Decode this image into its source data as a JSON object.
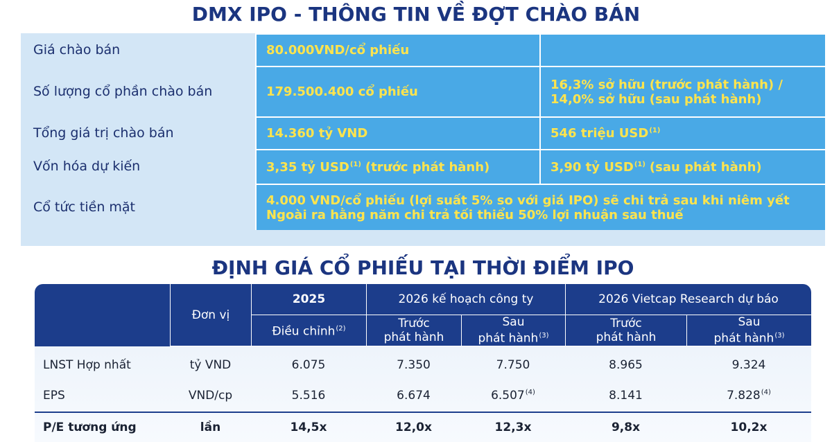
{
  "header": {
    "title": "DMX IPO - THÔNG TIN VỀ ĐỢT CHÀO BÁN"
  },
  "offer": {
    "rows": [
      {
        "label": "Giá chào bán",
        "value": {
          "text": "80.000VND/cổ phiếu"
        }
      },
      {
        "label": "Số lượng cổ phần chào bán",
        "value": {
          "text": "179.500.400 cổ phiếu"
        },
        "extra": {
          "lines": [
            "16,3% sở hữu (trước phát hành) /",
            "14,0% sở hữu (sau phát hành)"
          ]
        }
      },
      {
        "label": "Tổng giá trị chào bán",
        "value": {
          "text": "14.360 tỷ VND"
        },
        "extra": {
          "text": "546 triệu USD",
          "note": "(1)"
        }
      },
      {
        "label": "Vốn hóa dự kiến",
        "value": {
          "text": "3,35 tỷ USD",
          "note": "(1)",
          "after": "(trước phát hành)"
        },
        "extra": {
          "text": "3,90 tỷ USD",
          "note": "(1)",
          "after": "(sau phát hành)"
        }
      },
      {
        "label": "Cổ tức tiền mặt",
        "value": {
          "lines": [
            "4.000 VND/cổ phiếu (lợi suất 5% so với giá IPO) sẽ chi trả sau khi niêm yết",
            "Ngoài ra hằng năm chi trả tối thiểu 50% lợi nhuận sau thuế"
          ]
        }
      }
    ]
  },
  "valuation": {
    "title": "ĐỊNH GIÁ CỔ PHIẾU TẠI THỜI ĐIỂM IPO",
    "unit_header": "Đơn vị",
    "groups": [
      {
        "name": "2025",
        "subs": [
          {
            "lines": [
              "Điều chỉnh"
            ],
            "note": "(2)"
          }
        ]
      },
      {
        "name": "2026 kế hoạch công ty",
        "subs": [
          {
            "lines": [
              "Trước",
              "phát hành"
            ]
          },
          {
            "lines": [
              "Sau",
              "phát hành"
            ],
            "note": "(3)"
          }
        ]
      },
      {
        "name": "2026 Vietcap Research dự báo",
        "subs": [
          {
            "lines": [
              "Trước",
              "phát hành"
            ]
          },
          {
            "lines": [
              "Sau",
              "phát hành"
            ],
            "note": "(3)"
          }
        ]
      }
    ],
    "rows": [
      {
        "label": "LNST Hợp nhất",
        "unit": "tỷ VND",
        "cells": [
          {
            "text": "6.075"
          },
          {
            "text": "7.350"
          },
          {
            "text": "7.750"
          },
          {
            "text": "8.965"
          },
          {
            "text": "9.324"
          }
        ]
      },
      {
        "label": "EPS",
        "unit": "VND/cp",
        "cells": [
          {
            "text": "5.516"
          },
          {
            "text": "6.674"
          },
          {
            "text": "6.507",
            "note": "(4)"
          },
          {
            "text": "8.141"
          },
          {
            "text": "7.828",
            "note": "(4)"
          }
        ]
      },
      {
        "label": "P/E tương ứng",
        "unit": "lần",
        "cells": [
          {
            "text": "14,5x"
          },
          {
            "text": "12,0x"
          },
          {
            "text": "12,3x"
          },
          {
            "text": "9,8x"
          },
          {
            "text": "10,2x"
          }
        ]
      }
    ]
  }
}
